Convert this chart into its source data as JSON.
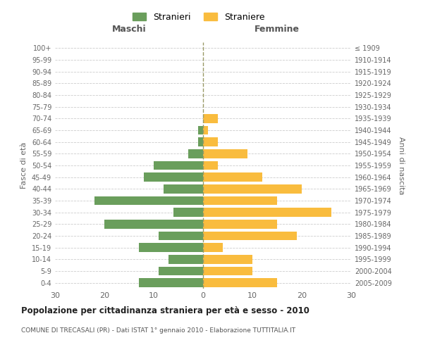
{
  "age_groups": [
    "0-4",
    "5-9",
    "10-14",
    "15-19",
    "20-24",
    "25-29",
    "30-34",
    "35-39",
    "40-44",
    "45-49",
    "50-54",
    "55-59",
    "60-64",
    "65-69",
    "70-74",
    "75-79",
    "80-84",
    "85-89",
    "90-94",
    "95-99",
    "100+"
  ],
  "birth_years": [
    "2005-2009",
    "2000-2004",
    "1995-1999",
    "1990-1994",
    "1985-1989",
    "1980-1984",
    "1975-1979",
    "1970-1974",
    "1965-1969",
    "1960-1964",
    "1955-1959",
    "1950-1954",
    "1945-1949",
    "1940-1944",
    "1935-1939",
    "1930-1934",
    "1925-1929",
    "1920-1924",
    "1915-1919",
    "1910-1914",
    "≤ 1909"
  ],
  "maschi": [
    13,
    9,
    7,
    13,
    9,
    20,
    6,
    22,
    8,
    12,
    10,
    3,
    1,
    1,
    0,
    0,
    0,
    0,
    0,
    0,
    0
  ],
  "femmine": [
    15,
    10,
    10,
    4,
    19,
    15,
    26,
    15,
    20,
    12,
    3,
    9,
    3,
    1,
    3,
    0,
    0,
    0,
    0,
    0,
    0
  ],
  "color_maschi": "#6a9e5c",
  "color_femmine": "#f9bc3e",
  "title": "Popolazione per cittadinanza straniera per età e sesso - 2010",
  "subtitle": "COMUNE DI TRECASALI (PR) - Dati ISTAT 1° gennaio 2010 - Elaborazione TUTTITALIA.IT",
  "xlabel_left": "Maschi",
  "xlabel_right": "Femmine",
  "ylabel_left": "Fasce di età",
  "ylabel_right": "Anni di nascita",
  "legend_maschi": "Stranieri",
  "legend_femmine": "Straniere",
  "xlim": 30,
  "background_color": "#ffffff",
  "grid_color": "#cccccc"
}
